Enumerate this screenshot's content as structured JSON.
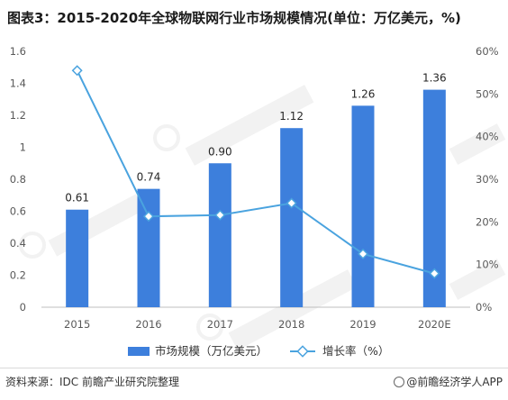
{
  "title": "图表3：2015-2020年全球物联网行业市场规模情况(单位：万亿美元，%)",
  "source": "资料来源：IDC 前瞻产业研究院整理",
  "brand": "@前瞻经济学人APP",
  "chart_data": {
    "type": "bar",
    "title": "图表3：2015-2020年全球物联网行业市场规模情况(单位：万亿美元，%)",
    "categories": [
      "2015",
      "2016",
      "2017",
      "2018",
      "2019",
      "2020E"
    ],
    "series": [
      {
        "name": "市场规模（万亿美元）",
        "type": "bar",
        "axis": "left",
        "values": [
          0.61,
          0.74,
          0.9,
          1.12,
          1.26,
          1.36
        ],
        "labels": [
          "0.61",
          "0.74",
          "0.90",
          "1.12",
          "1.26",
          "1.36"
        ],
        "color": "#3d7fdc"
      },
      {
        "name": "增长率（%）",
        "type": "line",
        "axis": "right",
        "values": [
          55.5,
          21.3,
          21.6,
          24.4,
          12.5,
          7.9
        ],
        "color": "#4aa3df"
      }
    ],
    "y_left": {
      "range": [
        0,
        1.6
      ],
      "ticks": [
        "0",
        "0.2",
        "0.4",
        "0.6",
        "0.8",
        "1",
        "1.2",
        "1.4",
        "1.6"
      ]
    },
    "y_right": {
      "range": [
        0,
        60
      ],
      "ticks": [
        "0%",
        "10%",
        "20%",
        "30%",
        "40%",
        "50%",
        "60%"
      ]
    },
    "grid": false,
    "legend": "bottom"
  }
}
